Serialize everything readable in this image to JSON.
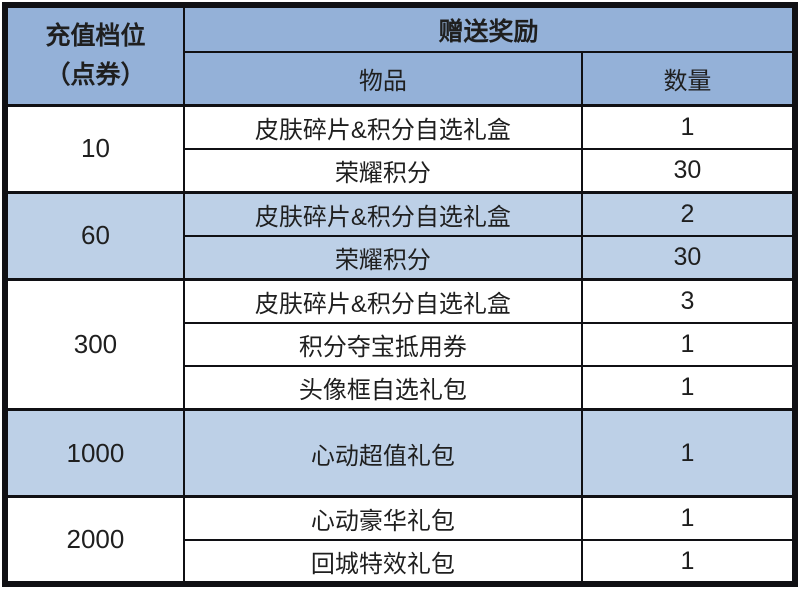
{
  "colors": {
    "header_blue": "#94b1d8",
    "highlight_row_blue": "#bdd0e7",
    "border_dark": "#101014",
    "text": "#1f1f1f"
  },
  "table": {
    "header": {
      "tier_title_line1": "充值档位",
      "tier_title_line2": "（点券）",
      "rewards_title": "赠送奖励",
      "item_col": "物品",
      "qty_col": "数量"
    },
    "groups": [
      {
        "tier": "10",
        "highlighted": false,
        "items": [
          {
            "name": "皮肤碎片&积分自选礼盒",
            "qty": "1"
          },
          {
            "name": "荣耀积分",
            "qty": "30"
          }
        ]
      },
      {
        "tier": "60",
        "highlighted": true,
        "items": [
          {
            "name": "皮肤碎片&积分自选礼盒",
            "qty": "2"
          },
          {
            "name": "荣耀积分",
            "qty": "30"
          }
        ]
      },
      {
        "tier": "300",
        "highlighted": false,
        "items": [
          {
            "name": "皮肤碎片&积分自选礼盒",
            "qty": "3"
          },
          {
            "name": "积分夺宝抵用券",
            "qty": "1"
          },
          {
            "name": "头像框自选礼包",
            "qty": "1"
          }
        ]
      },
      {
        "tier": "1000",
        "highlighted": true,
        "items": [
          {
            "name": "心动超值礼包",
            "qty": "1"
          }
        ]
      },
      {
        "tier": "2000",
        "highlighted": false,
        "items": [
          {
            "name": "心动豪华礼包",
            "qty": "1"
          },
          {
            "name": "回城特效礼包",
            "qty": "1"
          }
        ]
      }
    ]
  }
}
